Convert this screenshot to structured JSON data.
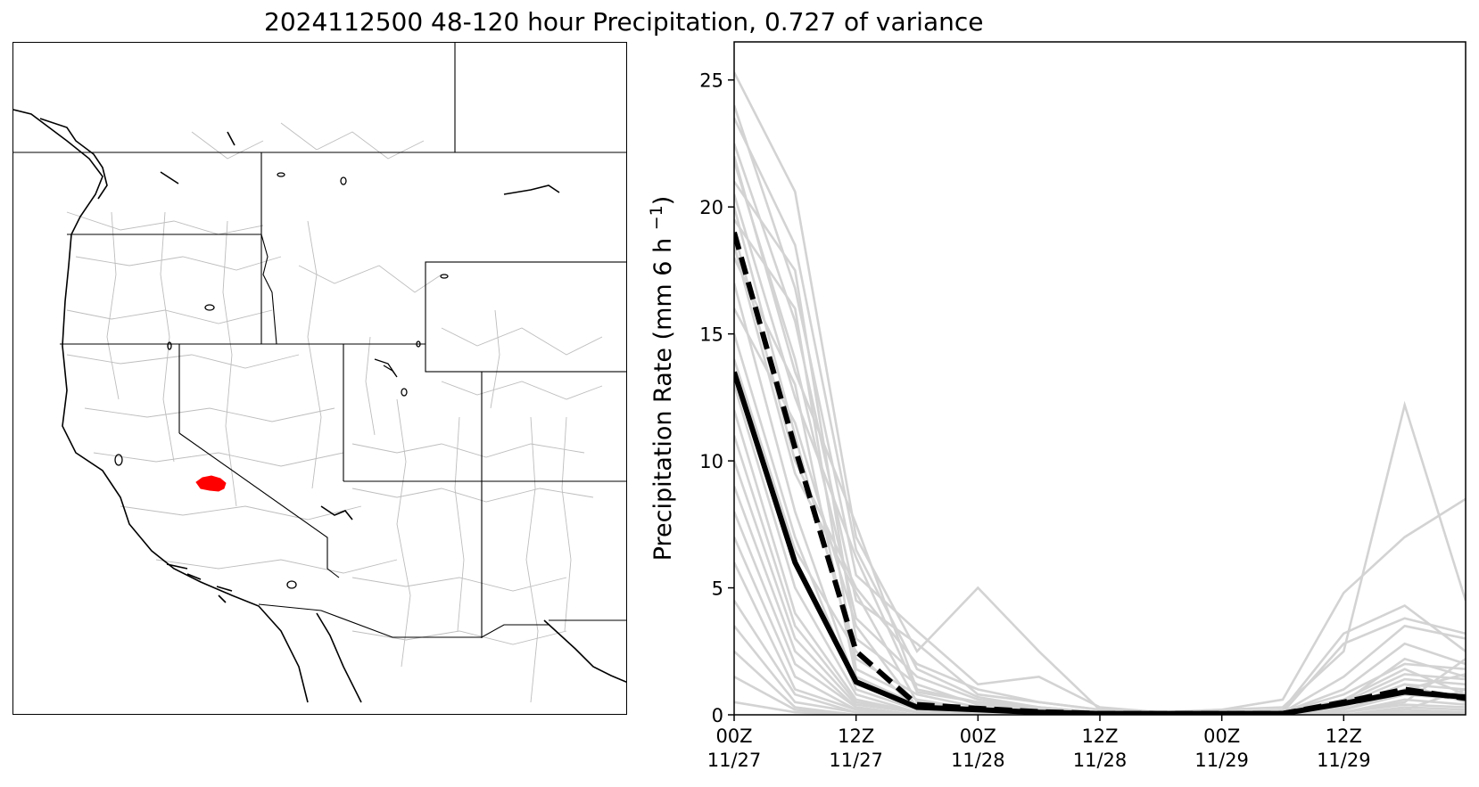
{
  "figure": {
    "title": "2024112500 48-120 hour Precipitation, 0.727 of variance"
  },
  "map": {
    "region": "Western United States",
    "highlight_color": "#ff0000",
    "border_color": "#000000",
    "basin_line_color": "#bdbdbd"
  },
  "chart_data": {
    "type": "line",
    "ylabel": "Precipitation Rate (mm 6 h",
    "ylabel_superscript": "−1",
    "ylabel_suffix": ")",
    "ylim": [
      0,
      26.5
    ],
    "yticks": [
      0,
      5,
      10,
      15,
      20,
      25
    ],
    "x": [
      0,
      6,
      12,
      18,
      24,
      30,
      36,
      42,
      48,
      54,
      60,
      66,
      72
    ],
    "xlim": [
      0,
      72
    ],
    "xticks": [
      {
        "x": 0,
        "line1": "00Z",
        "line2": "11/27"
      },
      {
        "x": 12,
        "line1": "12Z",
        "line2": "11/27"
      },
      {
        "x": 24,
        "line1": "00Z",
        "line2": "11/28"
      },
      {
        "x": 36,
        "line1": "12Z",
        "line2": "11/28"
      },
      {
        "x": 48,
        "line1": "00Z",
        "line2": "11/29"
      },
      {
        "x": 60,
        "line1": "12Z",
        "line2": "11/29"
      }
    ],
    "grid": false,
    "series": [
      {
        "style": "solid",
        "color": "#000000",
        "values": [
          13.5,
          6.0,
          1.3,
          0.3,
          0.2,
          0.1,
          0.05,
          0.05,
          0.05,
          0.05,
          0.45,
          0.9,
          0.7
        ]
      },
      {
        "style": "dashed",
        "color": "#000000",
        "values": [
          19.0,
          10.5,
          2.5,
          0.4,
          0.25,
          0.12,
          0.05,
          0.05,
          0.05,
          0.05,
          0.5,
          1.0,
          0.65
        ]
      }
    ],
    "ensemble": {
      "color": "#d3d3d3",
      "members": [
        [
          25.3,
          20.6,
          7.0,
          2.5,
          5.0,
          2.5,
          0.2,
          0.1,
          0.2,
          0.3,
          2.5,
          12.2,
          4.5
        ],
        [
          24.0,
          16.8,
          5.5,
          3.3,
          1.2,
          1.5,
          0.3,
          0.1,
          0.2,
          0.6,
          4.8,
          7.0,
          8.5
        ],
        [
          22.5,
          15.5,
          4.5,
          2.8,
          0.8,
          0.5,
          0.2,
          0.1,
          0.1,
          0.2,
          3.2,
          4.3,
          2.5
        ],
        [
          21.8,
          14.0,
          3.8,
          1.5,
          0.6,
          0.3,
          0.1,
          0.0,
          0.1,
          0.1,
          2.8,
          3.8,
          3.2
        ],
        [
          21.0,
          17.5,
          3.0,
          1.2,
          0.4,
          0.2,
          0.1,
          0.0,
          0.1,
          0.1,
          1.5,
          3.5,
          3.0
        ],
        [
          20.5,
          12.5,
          6.2,
          0.9,
          0.5,
          0.2,
          0.1,
          0.0,
          0.0,
          0.1,
          1.0,
          2.8,
          2.0
        ],
        [
          20.0,
          11.0,
          2.2,
          0.8,
          0.3,
          0.1,
          0.1,
          0.0,
          0.0,
          0.1,
          0.8,
          2.0,
          1.8
        ],
        [
          19.5,
          16.0,
          1.8,
          0.6,
          0.2,
          0.1,
          0.0,
          0.0,
          0.0,
          0.0,
          0.5,
          1.6,
          1.4
        ],
        [
          18.5,
          9.5,
          4.8,
          0.5,
          0.2,
          0.1,
          0.0,
          0.0,
          0.0,
          0.0,
          0.4,
          1.4,
          1.2
        ],
        [
          18.0,
          13.0,
          1.5,
          0.4,
          0.2,
          0.1,
          0.0,
          0.0,
          0.0,
          0.0,
          0.3,
          1.2,
          1.0
        ],
        [
          17.0,
          8.0,
          1.2,
          0.3,
          0.1,
          0.0,
          0.0,
          0.0,
          0.0,
          0.0,
          0.2,
          1.0,
          1.6
        ],
        [
          16.0,
          11.5,
          3.5,
          0.3,
          0.1,
          0.0,
          0.0,
          0.0,
          0.0,
          0.0,
          0.2,
          0.8,
          0.6
        ],
        [
          15.0,
          7.0,
          1.0,
          0.2,
          0.1,
          0.0,
          0.0,
          0.0,
          0.0,
          0.0,
          0.1,
          0.6,
          0.4
        ],
        [
          14.0,
          6.5,
          2.5,
          0.2,
          0.1,
          0.0,
          0.0,
          0.0,
          0.0,
          0.0,
          0.1,
          0.5,
          2.2
        ],
        [
          13.0,
          5.0,
          0.8,
          0.1,
          0.0,
          0.0,
          0.0,
          0.0,
          0.0,
          0.0,
          0.1,
          0.4,
          0.3
        ],
        [
          12.0,
          4.0,
          0.6,
          0.1,
          0.0,
          0.0,
          0.0,
          0.0,
          0.0,
          0.0,
          0.0,
          0.3,
          0.2
        ],
        [
          11.0,
          3.5,
          0.5,
          0.1,
          0.0,
          0.0,
          0.0,
          0.0,
          0.0,
          0.0,
          0.0,
          0.2,
          0.1
        ],
        [
          10.0,
          3.0,
          0.4,
          0.1,
          0.0,
          0.0,
          0.0,
          0.0,
          0.0,
          0.0,
          0.0,
          0.2,
          1.0
        ],
        [
          9.0,
          2.5,
          0.3,
          0.0,
          0.0,
          0.0,
          0.0,
          0.0,
          0.0,
          0.0,
          0.0,
          0.1,
          0.1
        ],
        [
          8.0,
          2.0,
          0.3,
          0.0,
          0.0,
          0.0,
          0.0,
          0.0,
          0.0,
          0.0,
          0.0,
          0.1,
          0.1
        ],
        [
          7.0,
          1.5,
          0.2,
          0.0,
          0.0,
          0.0,
          0.0,
          0.0,
          0.0,
          0.0,
          0.0,
          0.1,
          0.0
        ],
        [
          6.0,
          1.0,
          0.2,
          0.0,
          0.0,
          0.0,
          0.0,
          0.0,
          0.0,
          0.0,
          0.0,
          0.0,
          0.0
        ],
        [
          4.5,
          0.8,
          0.1,
          0.0,
          0.0,
          0.0,
          0.0,
          0.0,
          0.0,
          0.0,
          0.0,
          0.0,
          0.0
        ],
        [
          3.5,
          0.5,
          0.1,
          0.0,
          0.0,
          0.0,
          0.0,
          0.0,
          0.0,
          0.0,
          0.0,
          0.0,
          0.0
        ],
        [
          2.5,
          0.3,
          0.0,
          0.0,
          0.0,
          0.0,
          0.0,
          0.0,
          0.0,
          0.0,
          0.0,
          0.0,
          0.0
        ],
        [
          1.5,
          0.2,
          0.0,
          0.0,
          0.0,
          0.0,
          0.0,
          0.0,
          0.0,
          0.0,
          0.0,
          0.0,
          0.0
        ],
        [
          0.5,
          0.1,
          0.0,
          0.0,
          0.0,
          0.0,
          0.0,
          0.0,
          0.0,
          0.0,
          0.0,
          0.0,
          0.0
        ],
        [
          22.0,
          13.5,
          7.5,
          1.0,
          0.5,
          0.3,
          0.1,
          0.0,
          0.0,
          0.1,
          0.5,
          2.2,
          1.5
        ],
        [
          19.0,
          10.0,
          5.0,
          2.0,
          1.0,
          0.5,
          0.2,
          0.0,
          0.1,
          0.1,
          0.6,
          1.8,
          0.8
        ],
        [
          23.5,
          18.5,
          6.5,
          1.8,
          0.7,
          0.3,
          0.1,
          0.0,
          0.0,
          0.0,
          0.3,
          1.2,
          0.5
        ]
      ]
    }
  }
}
